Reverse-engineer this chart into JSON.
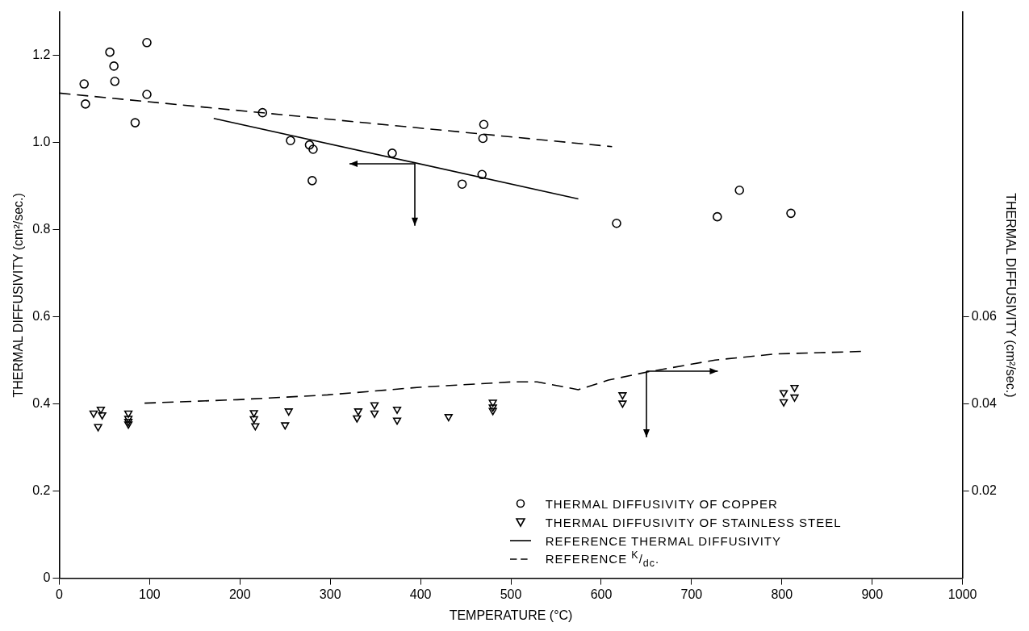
{
  "chart_data": {
    "type": "scatter",
    "xlabel": "TEMPERATURE (°C)",
    "ylabel": "THERMAL DIFFUSIVITY (cm²/sec.)",
    "y2label": "THERMAL DIFFUSIVITY (cm²/sec.)",
    "xlim": [
      0,
      1000
    ],
    "xticks": [
      0,
      100,
      200,
      300,
      400,
      500,
      600,
      700,
      800,
      900,
      1000
    ],
    "ylim": [
      0,
      1.3
    ],
    "yticks": [
      0,
      0.2,
      0.4,
      0.6,
      0.8,
      {
        "value": 1,
        "label": "1.0"
      },
      1.2
    ],
    "y2lim": [
      0,
      0.13
    ],
    "y2ticks": [
      0.02,
      0.04,
      0.06
    ],
    "grid": false,
    "legend": "bottom right",
    "series": [
      {
        "name": "THERMAL DIFFUSIVITY OF COPPER",
        "type": "scatter",
        "marker": "circle",
        "color": "#000000",
        "x": [
          27.5,
          29,
          56,
          60.5,
          61.5,
          97,
          97,
          84,
          225,
          256,
          277,
          281,
          280,
          368.6,
          470,
          469,
          468,
          446,
          617,
          728.5,
          753,
          810
        ],
        "values": [
          1.135,
          1.089,
          1.208,
          1.176,
          1.141,
          1.23,
          1.111,
          1.046,
          1.069,
          1.005,
          0.995,
          0.985,
          0.913,
          0.976,
          1.042,
          1.01,
          0.927,
          0.905,
          0.815,
          0.83,
          0.891,
          0.838
        ]
      },
      {
        "name": "THERMAL DIFFUSIVITY OF STAINLESS STEEL",
        "type": "scatter",
        "marker": "triangle",
        "axis": "y2",
        "color": "#000000",
        "x": [
          38,
          46,
          47.5,
          43,
          76.5,
          76.5,
          76.5,
          76.5,
          215.5,
          215.5,
          217,
          254,
          250,
          331,
          329.6,
          349,
          349,
          374,
          374,
          431,
          480,
          480,
          480,
          623.6,
          623.6,
          802,
          802,
          814,
          814
        ],
        "values": [
          0.0379,
          0.0388,
          0.0375,
          0.0348,
          0.0379,
          0.0367,
          0.036,
          0.0354,
          0.038,
          0.0366,
          0.035,
          0.0384,
          0.0352,
          0.0384,
          0.0368,
          0.0398,
          0.0379,
          0.0388,
          0.0363,
          0.0371,
          0.0404,
          0.0393,
          0.0385,
          0.0421,
          0.0402,
          0.0426,
          0.0405,
          0.0438,
          0.0416
        ]
      },
      {
        "name": "REFERENCE THERMAL DIFFUSIVITY",
        "type": "line",
        "marker": "none",
        "line_style": "solid",
        "color": "#000000",
        "x": [
          171,
          574.6
        ],
        "values": [
          1.056,
          0.871
        ]
      },
      {
        "name": "REFERENCE $^{K}$/$_{dc}$.",
        "type": "line",
        "marker": "none",
        "line_style": "dashed",
        "color": "#000000",
        "x": [
          0,
          612
        ],
        "values": [
          1.114,
          0.991
        ]
      },
      {
        "type": "line",
        "marker": "none",
        "line_style": "dashed",
        "axis": "y2",
        "color": "#000000",
        "x": [
          94.4,
          197,
          297,
          402,
          502.6,
          529,
          574.6,
          608,
          652,
          726,
          793,
          891
        ],
        "values": [
          0.0402,
          0.041,
          0.0421,
          0.0439,
          0.0451,
          0.0451,
          0.0433,
          0.0455,
          0.0474,
          0.0501,
          0.0515,
          0.0521
        ]
      }
    ]
  }
}
